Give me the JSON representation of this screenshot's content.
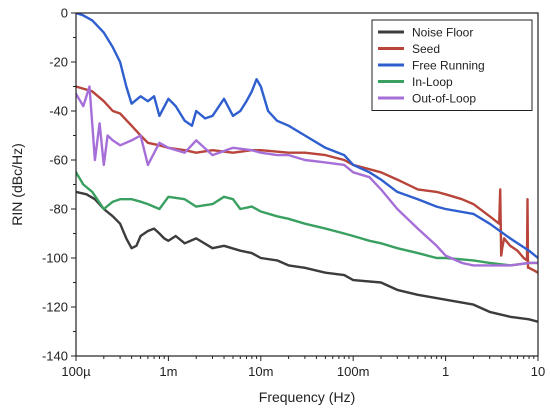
{
  "chart_data": {
    "type": "line",
    "title": "",
    "xlabel": "Frequency (Hz)",
    "ylabel": "RIN (dBc/Hz)",
    "xscale": "log",
    "xlim": [
      0.0001,
      10
    ],
    "ylim": [
      -140,
      0
    ],
    "xticks": [
      {
        "value": 0.0001,
        "label": "100µ"
      },
      {
        "value": 0.001,
        "label": "1m"
      },
      {
        "value": 0.01,
        "label": "10m"
      },
      {
        "value": 0.1,
        "label": "100m"
      },
      {
        "value": 1,
        "label": "1"
      },
      {
        "value": 10,
        "label": "10"
      }
    ],
    "yticks": [
      0,
      -20,
      -40,
      -60,
      -80,
      -100,
      -120,
      -140
    ],
    "grid": false,
    "legend_position": "top-right",
    "series": [
      {
        "name": "Noise Floor",
        "color": "#3c3c3c",
        "x": [
          0.0001,
          0.00013,
          0.00016,
          0.0002,
          0.00025,
          0.0003,
          0.00035,
          0.0004,
          0.00045,
          0.0005,
          0.0006,
          0.0007,
          0.0008,
          0.0009,
          0.001,
          0.0012,
          0.0015,
          0.002,
          0.003,
          0.004,
          0.006,
          0.008,
          0.01,
          0.015,
          0.02,
          0.03,
          0.05,
          0.08,
          0.1,
          0.2,
          0.3,
          0.5,
          1,
          2,
          3,
          5,
          8,
          10
        ],
        "y": [
          -73,
          -74,
          -76,
          -80,
          -83,
          -86,
          -92,
          -96,
          -95,
          -91,
          -89,
          -88,
          -90,
          -92,
          -93,
          -91,
          -94,
          -92,
          -96,
          -95,
          -97,
          -98,
          -100,
          -101,
          -103,
          -104,
          -106,
          -107,
          -109,
          -110,
          -113,
          -115,
          -117,
          -119,
          -122,
          -124,
          -125,
          -126
        ]
      },
      {
        "name": "Seed",
        "color": "#b8443a",
        "x": [
          0.0001,
          0.00015,
          0.0002,
          0.00025,
          0.0003,
          0.0004,
          0.0005,
          0.0006,
          0.0008,
          0.001,
          0.0015,
          0.002,
          0.003,
          0.005,
          0.008,
          0.01,
          0.02,
          0.03,
          0.05,
          0.08,
          0.1,
          0.2,
          0.3,
          0.5,
          0.8,
          1,
          1.5,
          2,
          3,
          3.8,
          3.9,
          4.0,
          4.1,
          4.3,
          5,
          6,
          7,
          7.6,
          7.7,
          7.8,
          8,
          9,
          10
        ],
        "y": [
          -30,
          -32,
          -36,
          -40,
          -41,
          -46,
          -50,
          -53,
          -54,
          -55,
          -56,
          -57,
          -56,
          -57,
          -56,
          -56,
          -57,
          -57,
          -58,
          -60,
          -62,
          -65,
          -68,
          -72,
          -73,
          -74,
          -76,
          -78,
          -83,
          -86,
          -72,
          -99,
          -96,
          -92,
          -95,
          -97,
          -100,
          -101,
          -76,
          -104,
          -104,
          -105,
          -106
        ]
      },
      {
        "name": "Free Running",
        "color": "#2f5fcf",
        "x": [
          0.0001,
          0.00012,
          0.00015,
          0.0002,
          0.00025,
          0.0003,
          0.00035,
          0.0004,
          0.0005,
          0.0006,
          0.0007,
          0.0008,
          0.001,
          0.0012,
          0.0015,
          0.0018,
          0.002,
          0.0025,
          0.003,
          0.004,
          0.005,
          0.006,
          0.007,
          0.008,
          0.009,
          0.01,
          0.012,
          0.015,
          0.02,
          0.03,
          0.05,
          0.08,
          0.1,
          0.15,
          0.2,
          0.3,
          0.5,
          0.8,
          1,
          2,
          3,
          5,
          8,
          10
        ],
        "y": [
          0,
          -1,
          -3,
          -8,
          -14,
          -20,
          -30,
          -37,
          -34,
          -36,
          -34,
          -42,
          -35,
          -38,
          -44,
          -46,
          -40,
          -43,
          -42,
          -35,
          -42,
          -40,
          -36,
          -32,
          -27,
          -30,
          -40,
          -44,
          -46,
          -50,
          -55,
          -58,
          -62,
          -65,
          -68,
          -73,
          -76,
          -79,
          -80,
          -82,
          -86,
          -92,
          -97,
          -100
        ]
      },
      {
        "name": "In-Loop",
        "color": "#3aa061",
        "x": [
          0.0001,
          0.00012,
          0.00015,
          0.0002,
          0.00025,
          0.0003,
          0.0004,
          0.0005,
          0.0006,
          0.0008,
          0.001,
          0.0015,
          0.002,
          0.003,
          0.004,
          0.005,
          0.006,
          0.008,
          0.01,
          0.015,
          0.02,
          0.03,
          0.05,
          0.08,
          0.1,
          0.15,
          0.2,
          0.3,
          0.5,
          0.8,
          1,
          2,
          3,
          5,
          8,
          10
        ],
        "y": [
          -65,
          -70,
          -73,
          -80,
          -77,
          -76,
          -76,
          -77,
          -78,
          -80,
          -75,
          -76,
          -79,
          -78,
          -75,
          -76,
          -80,
          -79,
          -81,
          -83,
          -84,
          -86,
          -88,
          -90,
          -91,
          -93,
          -94,
          -96,
          -98,
          -100,
          -100,
          -101,
          -102,
          -103,
          -102,
          -102
        ]
      },
      {
        "name": "Out-of-Loop",
        "color": "#a66fd8",
        "x": [
          0.0001,
          0.00012,
          0.00014,
          0.00016,
          0.00018,
          0.0002,
          0.00022,
          0.00025,
          0.0003,
          0.0004,
          0.0005,
          0.0006,
          0.0008,
          0.001,
          0.0015,
          0.002,
          0.003,
          0.005,
          0.008,
          0.01,
          0.015,
          0.02,
          0.03,
          0.05,
          0.08,
          0.1,
          0.15,
          0.2,
          0.3,
          0.5,
          0.8,
          1,
          1.5,
          2,
          3,
          5,
          8,
          10
        ],
        "y": [
          -33,
          -38,
          -30,
          -60,
          -45,
          -62,
          -50,
          -52,
          -54,
          -52,
          -50,
          -62,
          -53,
          -55,
          -57,
          -52,
          -58,
          -55,
          -56,
          -57,
          -58,
          -58,
          -60,
          -61,
          -62,
          -65,
          -67,
          -72,
          -80,
          -88,
          -95,
          -99,
          -102,
          -103,
          -103,
          -103,
          -102,
          -102
        ]
      }
    ]
  }
}
